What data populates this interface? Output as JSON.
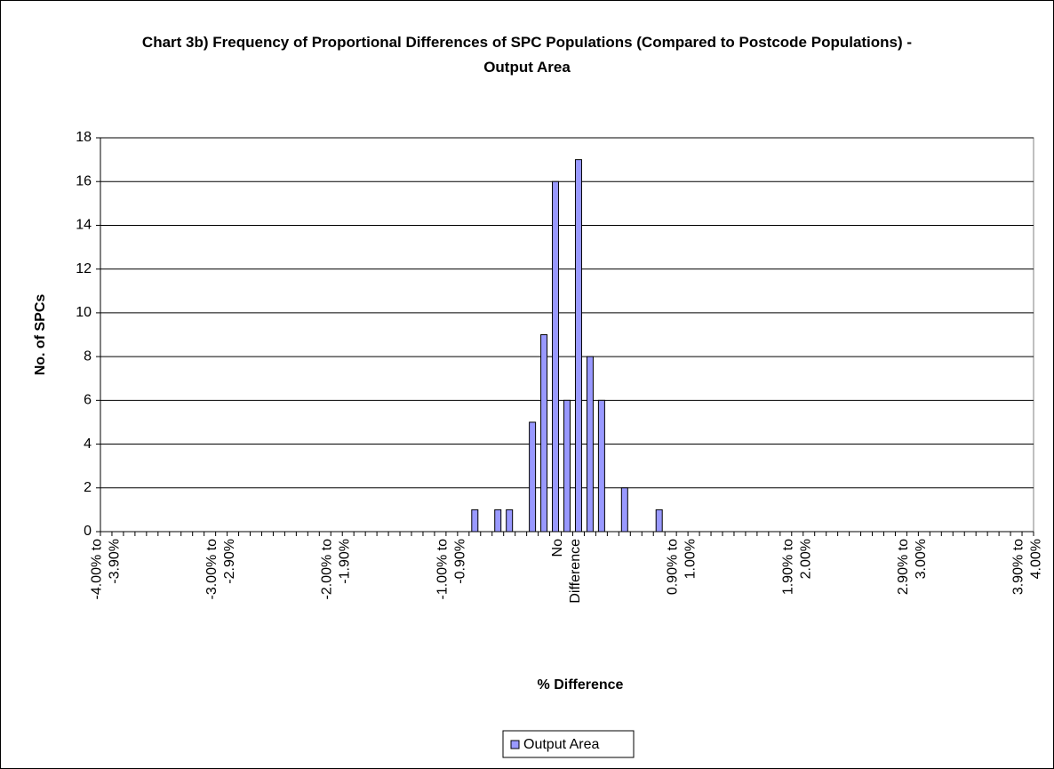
{
  "chart_data": {
    "type": "bar",
    "title": "Chart 3b) Frequency of Proportional Differences of SPC Populations (Compared to Postcode Populations) - Output Area",
    "x_label": "% Difference",
    "y_label": "No. of SPCs",
    "categories": [
      "-4.00% to -3.90%",
      null,
      null,
      null,
      null,
      null,
      null,
      null,
      null,
      null,
      "-3.00% to -2.90%",
      null,
      null,
      null,
      null,
      null,
      null,
      null,
      null,
      null,
      "-2.00% to -1.90%",
      null,
      null,
      null,
      null,
      null,
      null,
      null,
      null,
      null,
      "-1.00% to -0.90%",
      null,
      null,
      null,
      null,
      null,
      null,
      null,
      null,
      null,
      "No Difference",
      null,
      null,
      null,
      null,
      null,
      null,
      null,
      null,
      null,
      "0.90% to 1.00%",
      null,
      null,
      null,
      null,
      null,
      null,
      null,
      null,
      null,
      "1.90% to 2.00%",
      null,
      null,
      null,
      null,
      null,
      null,
      null,
      null,
      null,
      "2.90% to 3.00%",
      null,
      null,
      null,
      null,
      null,
      null,
      null,
      null,
      null,
      "3.90% to 4.00%"
    ],
    "series": [
      {
        "name": "Output Area",
        "color": "#9999ff",
        "values": [
          0,
          0,
          0,
          0,
          0,
          0,
          0,
          0,
          0,
          0,
          0,
          0,
          0,
          0,
          0,
          0,
          0,
          0,
          0,
          0,
          0,
          0,
          0,
          0,
          0,
          0,
          0,
          0,
          0,
          0,
          0,
          0,
          1,
          0,
          1,
          1,
          0,
          5,
          9,
          16,
          6,
          17,
          8,
          6,
          0,
          2,
          0,
          0,
          1,
          0,
          0,
          0,
          0,
          0,
          0,
          0,
          0,
          0,
          0,
          0,
          0,
          0,
          0,
          0,
          0,
          0,
          0,
          0,
          0,
          0,
          0,
          0,
          0,
          0,
          0,
          0,
          0,
          0,
          0,
          0,
          0
        ]
      }
    ],
    "ylim": [
      0,
      18
    ],
    "yticks": [
      0,
      2,
      4,
      6,
      8,
      10,
      12,
      14,
      16,
      18
    ],
    "grid": true,
    "legend": "bottom"
  }
}
